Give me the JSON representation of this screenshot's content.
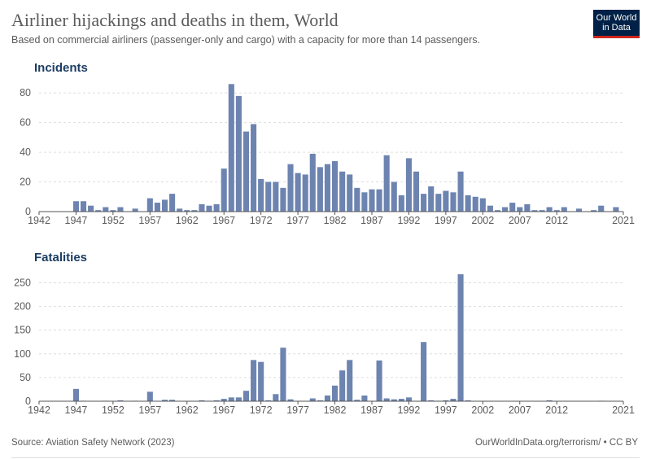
{
  "header": {
    "title": "Airliner hijackings and deaths in them, World",
    "subtitle": "Based on commercial airliners (passenger-only and cargo) with a capacity for more than 14 passengers."
  },
  "logo": {
    "line1": "Our World",
    "line2": "in Data"
  },
  "footer": {
    "source": "Source: Aviation Safety Network (2023)",
    "url": "OurWorldInData.org/terrorism/ • CC BY"
  },
  "colors": {
    "bar": "#6d84b0",
    "grid": "#dddddd",
    "axis": "#555555",
    "panel_title": "#1d3d63"
  },
  "chart_data": [
    {
      "type": "bar",
      "title": "Incidents",
      "x": [
        1942,
        1943,
        1944,
        1945,
        1946,
        1947,
        1948,
        1949,
        1950,
        1951,
        1952,
        1953,
        1954,
        1955,
        1956,
        1957,
        1958,
        1959,
        1960,
        1961,
        1962,
        1963,
        1964,
        1965,
        1966,
        1967,
        1968,
        1969,
        1970,
        1971,
        1972,
        1973,
        1974,
        1975,
        1976,
        1977,
        1978,
        1979,
        1980,
        1981,
        1982,
        1983,
        1984,
        1985,
        1986,
        1987,
        1988,
        1989,
        1990,
        1991,
        1992,
        1993,
        1994,
        1995,
        1996,
        1997,
        1998,
        1999,
        2000,
        2001,
        2002,
        2003,
        2004,
        2005,
        2006,
        2007,
        2008,
        2009,
        2010,
        2011,
        2012,
        2013,
        2014,
        2015,
        2016,
        2017,
        2018,
        2019,
        2020,
        2021
      ],
      "values": [
        0,
        0,
        0,
        0,
        0,
        7,
        7,
        4,
        1,
        3,
        1,
        3,
        0,
        2,
        0,
        9,
        6,
        8,
        12,
        2,
        1,
        1,
        5,
        4,
        5,
        29,
        86,
        78,
        54,
        59,
        22,
        20,
        20,
        16,
        32,
        26,
        25,
        39,
        30,
        32,
        34,
        27,
        25,
        16,
        13,
        15,
        15,
        38,
        20,
        11,
        36,
        27,
        12,
        17,
        12,
        14,
        13,
        27,
        11,
        10,
        9,
        4,
        1,
        3,
        6,
        3,
        5,
        1,
        1,
        3,
        1,
        3,
        0,
        2,
        0,
        1,
        4,
        0,
        3,
        0
      ],
      "xticks": [
        1942,
        1947,
        1952,
        1957,
        1962,
        1967,
        1972,
        1977,
        1982,
        1987,
        1992,
        1997,
        2002,
        2007,
        2012,
        2021
      ],
      "yticks": [
        0,
        20,
        40,
        60,
        80
      ],
      "ylim": [
        0,
        90
      ]
    },
    {
      "type": "bar",
      "title": "Fatalities",
      "x": [
        1942,
        1943,
        1944,
        1945,
        1946,
        1947,
        1948,
        1949,
        1950,
        1951,
        1952,
        1953,
        1954,
        1955,
        1956,
        1957,
        1958,
        1959,
        1960,
        1961,
        1962,
        1963,
        1964,
        1965,
        1966,
        1967,
        1968,
        1969,
        1970,
        1971,
        1972,
        1973,
        1974,
        1975,
        1976,
        1977,
        1978,
        1979,
        1980,
        1981,
        1982,
        1983,
        1984,
        1985,
        1986,
        1987,
        1988,
        1989,
        1990,
        1991,
        1992,
        1993,
        1994,
        1995,
        1996,
        1997,
        1998,
        1999,
        2000,
        2001,
        2002,
        2003,
        2004,
        2005,
        2006,
        2007,
        2008,
        2009,
        2010,
        2011,
        2012,
        2013,
        2014,
        2015,
        2016,
        2017,
        2018,
        2019,
        2020,
        2021
      ],
      "values": [
        0,
        0,
        0,
        0,
        0,
        26,
        1,
        0,
        0,
        1,
        0,
        2,
        0,
        1,
        0,
        20,
        0,
        3,
        3,
        0,
        0,
        0,
        2,
        1,
        2,
        5,
        8,
        8,
        22,
        87,
        83,
        2,
        15,
        113,
        4,
        0,
        0,
        6,
        2,
        12,
        33,
        65,
        87,
        3,
        12,
        0,
        86,
        6,
        4,
        5,
        8,
        0,
        125,
        2,
        1,
        2,
        5,
        268,
        2,
        0,
        0,
        0,
        0,
        0,
        0,
        0,
        0,
        0,
        0,
        2,
        0,
        0,
        0,
        0,
        0,
        0,
        1,
        0,
        0,
        0
      ],
      "xticks": [
        1942,
        1947,
        1952,
        1957,
        1962,
        1967,
        1972,
        1977,
        1982,
        1987,
        1992,
        1997,
        2002,
        2007,
        2012,
        2021
      ],
      "yticks": [
        0,
        50,
        100,
        150,
        200,
        250
      ],
      "ylim": [
        0,
        280
      ]
    }
  ]
}
